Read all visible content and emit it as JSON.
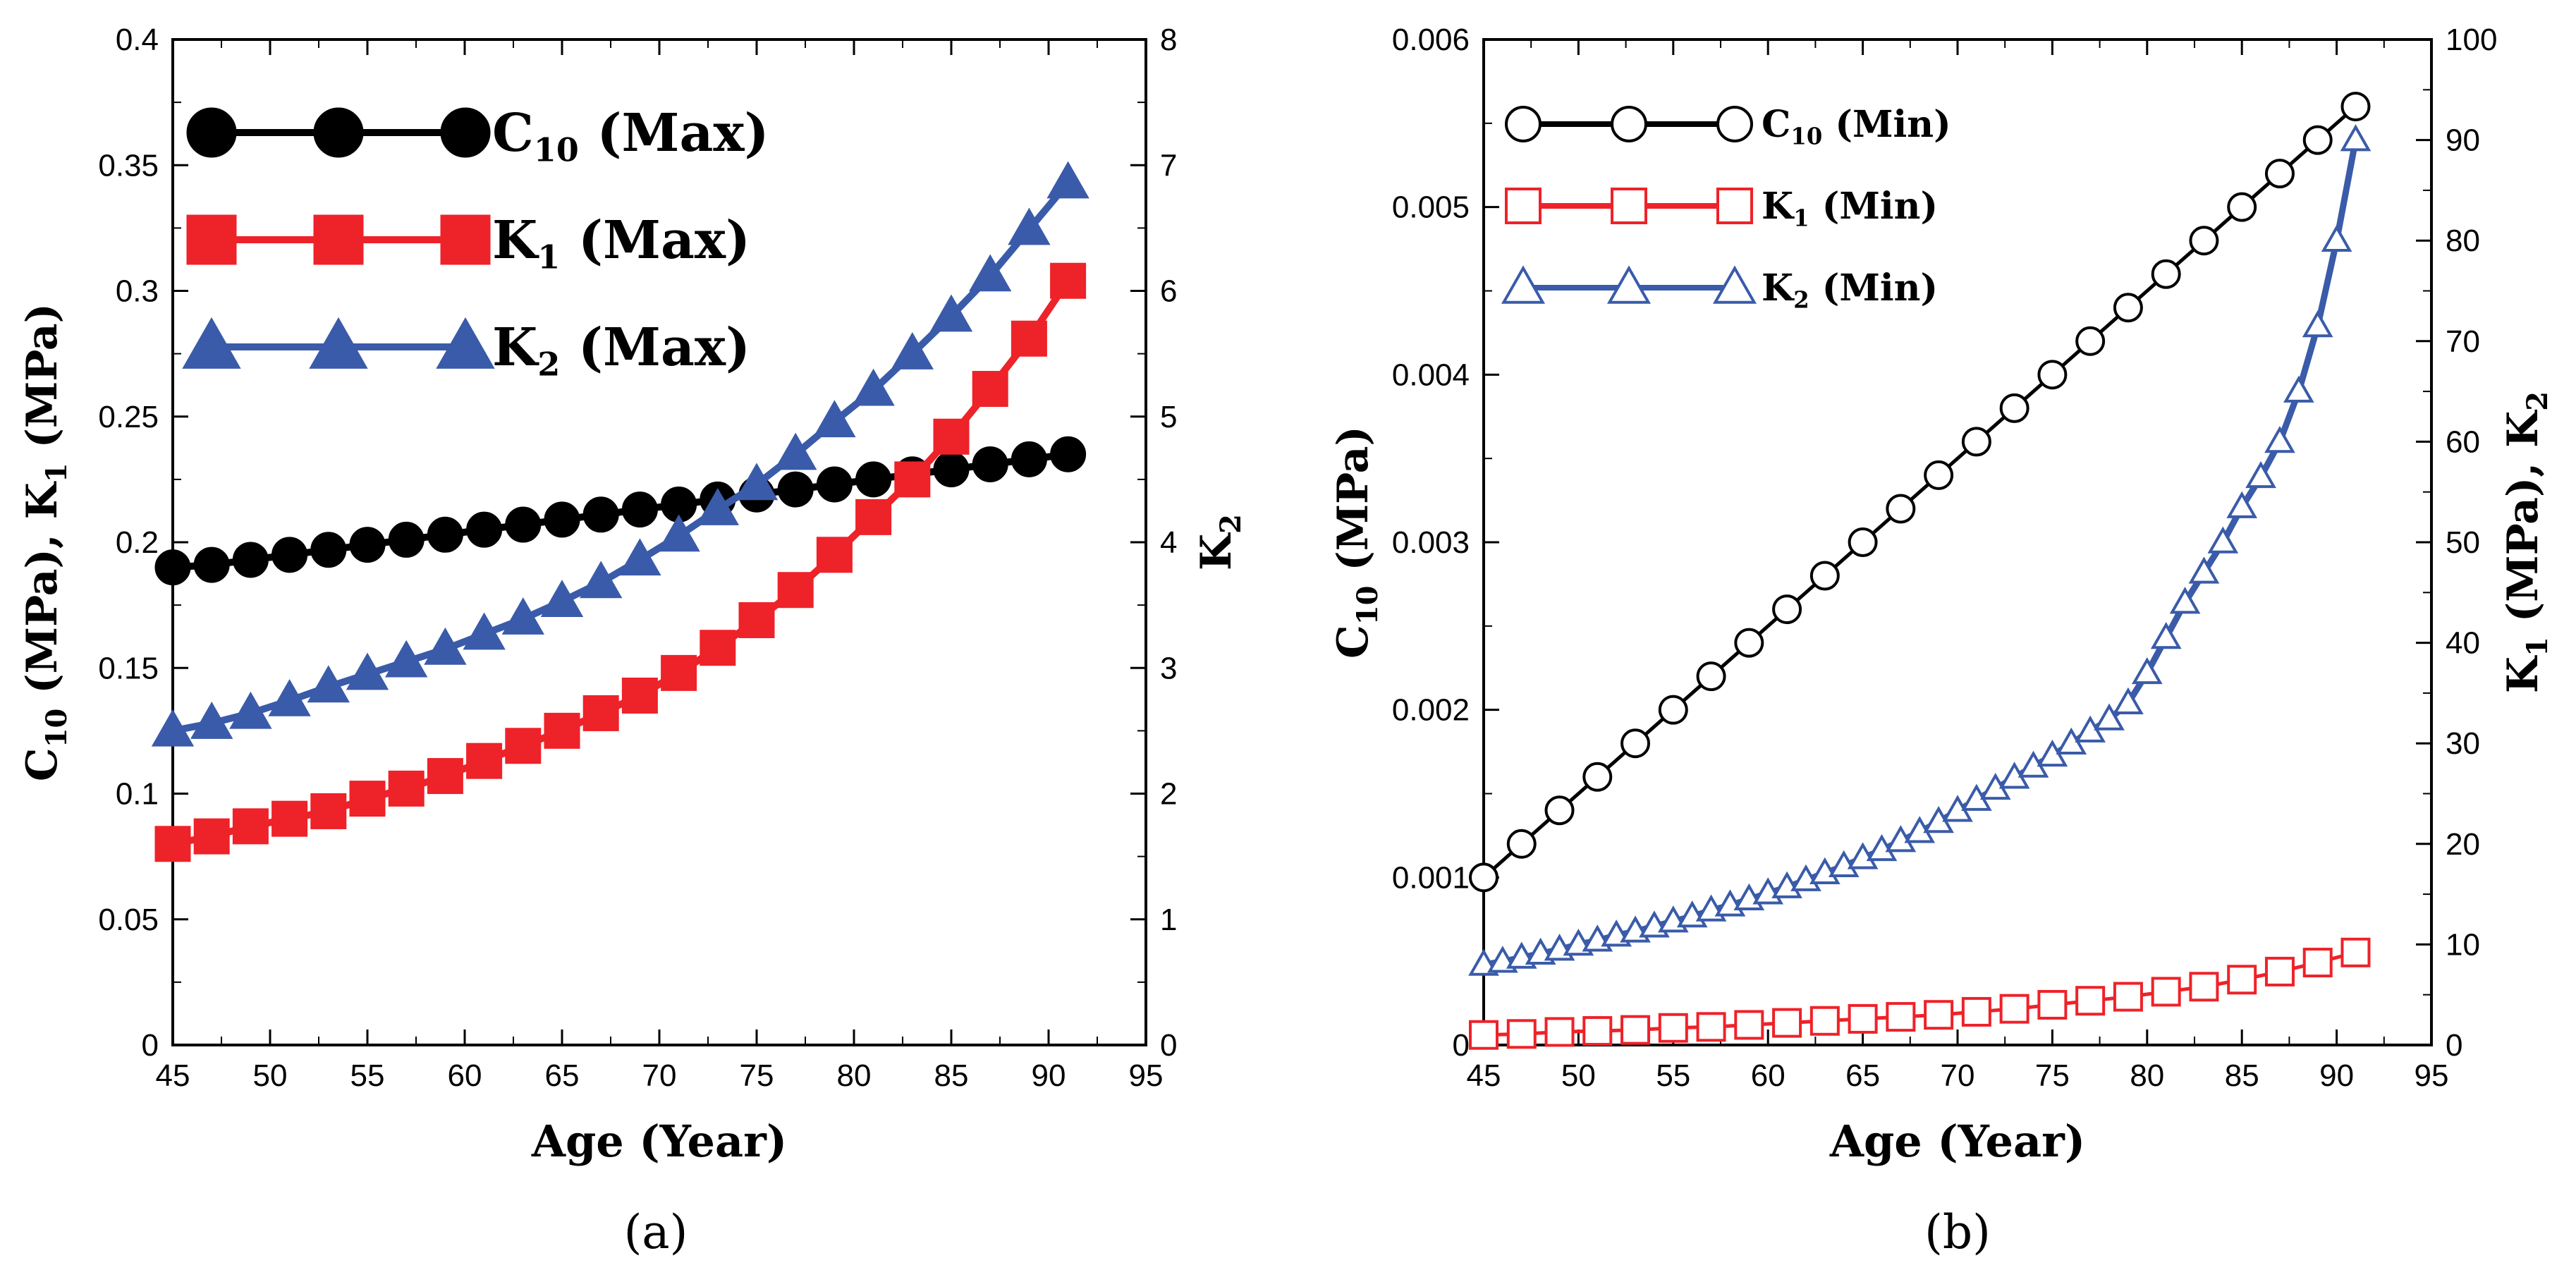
{
  "chart_data": [
    {
      "type": "line",
      "panel_label": "(a)",
      "xlabel": "Age (Year)",
      "ylabel_left": {
        "main": "C",
        "sub": "10",
        "rest": " (MPa), K",
        "sub2": "1",
        "rest2": " (MPa)"
      },
      "ylabel_right": {
        "main": "K",
        "sub": "2"
      },
      "x_ticks": [
        45,
        50,
        55,
        60,
        65,
        70,
        75,
        80,
        85,
        90,
        95
      ],
      "xlim": [
        45,
        95
      ],
      "ylim_left": [
        0,
        0.4
      ],
      "ylim_right": [
        0,
        8
      ],
      "y_ticks_left": [
        "0",
        "0.05",
        "0.1",
        "0.15",
        "0.2",
        "0.25",
        "0.3",
        "0.35",
        "0.4"
      ],
      "y_ticks_right": [
        "0",
        "1",
        "2",
        "3",
        "4",
        "5",
        "6",
        "7",
        "8"
      ],
      "legend": [
        {
          "main": "C",
          "sub": "10",
          "rest": " (Max)",
          "series": "C10"
        },
        {
          "main": "K",
          "sub": "1",
          "rest": " (Max)",
          "series": "K1"
        },
        {
          "main": "K",
          "sub": "2",
          "rest": " (Max)",
          "series": "K2"
        }
      ],
      "x": [
        45,
        47,
        49,
        51,
        53,
        55,
        57,
        59,
        61,
        63,
        65,
        67,
        69,
        71,
        73,
        75,
        77,
        79,
        81,
        83,
        85,
        87,
        89,
        91
      ],
      "series": [
        {
          "name": "C10 (Max)",
          "axis": "left",
          "marker": "circle",
          "filled": true,
          "color": "#000000",
          "values": [
            0.19,
            0.191,
            0.193,
            0.195,
            0.197,
            0.199,
            0.201,
            0.203,
            0.205,
            0.207,
            0.209,
            0.211,
            0.213,
            0.215,
            0.217,
            0.219,
            0.221,
            0.223,
            0.225,
            0.227,
            0.229,
            0.231,
            0.233,
            0.235
          ]
        },
        {
          "name": "K1 (Max)",
          "axis": "left",
          "marker": "square",
          "filled": true,
          "color": "#ee2229",
          "values": [
            0.08,
            0.083,
            0.087,
            0.09,
            0.093,
            0.098,
            0.102,
            0.107,
            0.113,
            0.119,
            0.125,
            0.132,
            0.139,
            0.148,
            0.158,
            0.169,
            0.181,
            0.195,
            0.21,
            0.225,
            0.242,
            0.261,
            0.281,
            0.304
          ]
        },
        {
          "name": "K2 (Max)",
          "axis": "right",
          "marker": "triangle",
          "filled": true,
          "color": "#3a5ba9",
          "values": [
            2.5,
            2.56,
            2.64,
            2.74,
            2.85,
            2.95,
            3.05,
            3.15,
            3.27,
            3.39,
            3.53,
            3.68,
            3.86,
            4.05,
            4.26,
            4.46,
            4.7,
            4.96,
            5.21,
            5.5,
            5.8,
            6.12,
            6.49,
            6.86
          ]
        }
      ]
    },
    {
      "type": "line",
      "panel_label": "(b)",
      "xlabel": "Age (Year)",
      "ylabel_left": {
        "main": "C",
        "sub": "10",
        "rest": " (MPa)"
      },
      "ylabel_right": {
        "main": "K",
        "sub": "1",
        "rest": " (MPa), K",
        "sub2": "2",
        "rest2": ""
      },
      "x_ticks": [
        45,
        50,
        55,
        60,
        65,
        70,
        75,
        80,
        85,
        90,
        95
      ],
      "xlim": [
        45,
        95
      ],
      "ylim_left": [
        0,
        0.006
      ],
      "ylim_right": [
        0,
        100
      ],
      "y_ticks_left": [
        "0",
        "0.001",
        "0.002",
        "0.003",
        "0.004",
        "0.005",
        "0.006"
      ],
      "y_ticks_right": [
        "0",
        "10",
        "20",
        "30",
        "40",
        "50",
        "60",
        "70",
        "80",
        "90",
        "100"
      ],
      "legend": [
        {
          "main": "C",
          "sub": "10",
          "rest": " (Min)",
          "series": "C10"
        },
        {
          "main": "K",
          "sub": "1",
          "rest": " (Min)",
          "series": "K1"
        },
        {
          "main": "K",
          "sub": "2",
          "rest": " (Min)",
          "series": "K2"
        }
      ],
      "series": [
        {
          "name": "C10 (Min)",
          "axis": "left",
          "marker": "circle",
          "filled": false,
          "color": "#000000",
          "x": [
            45,
            47,
            49,
            51,
            53,
            55,
            57,
            59,
            61,
            63,
            65,
            67,
            69,
            71,
            73,
            75,
            77,
            79,
            81,
            83,
            85,
            87,
            89,
            91
          ],
          "values": [
            0.001,
            0.0012,
            0.0014,
            0.0016,
            0.0018,
            0.002,
            0.0022,
            0.0024,
            0.0026,
            0.0028,
            0.003,
            0.0032,
            0.0034,
            0.0036,
            0.0038,
            0.004,
            0.0042,
            0.0044,
            0.0046,
            0.0048,
            0.005,
            0.0052,
            0.0054,
            0.0056
          ]
        },
        {
          "name": "K1 (Min)",
          "axis": "right",
          "marker": "square",
          "filled": false,
          "color": "#ee2229",
          "x": [
            45,
            47,
            49,
            51,
            53,
            55,
            57,
            59,
            61,
            63,
            65,
            67,
            69,
            71,
            73,
            75,
            77,
            79,
            81,
            83,
            85,
            87,
            89,
            91
          ],
          "values": [
            1.0,
            1.1,
            1.3,
            1.4,
            1.5,
            1.7,
            1.8,
            2.0,
            2.2,
            2.4,
            2.6,
            2.8,
            3.0,
            3.3,
            3.6,
            4.0,
            4.4,
            4.8,
            5.3,
            5.8,
            6.5,
            7.3,
            8.2,
            9.2
          ]
        },
        {
          "name": "K2 (Min)",
          "axis": "right",
          "marker": "triangle",
          "filled": false,
          "color": "#3a5ba9",
          "x": [
            45,
            46,
            47,
            48,
            49,
            50,
            51,
            52,
            53,
            54,
            55,
            56,
            57,
            58,
            59,
            60,
            61,
            62,
            63,
            64,
            65,
            66,
            67,
            68,
            69,
            70,
            71,
            72,
            73,
            74,
            75,
            76,
            77,
            78,
            79,
            80,
            81,
            82,
            83,
            84,
            85,
            86,
            87,
            88,
            89,
            90,
            91
          ],
          "values": [
            8.0,
            8.3,
            8.7,
            9.1,
            9.5,
            10.0,
            10.4,
            10.9,
            11.3,
            11.8,
            12.3,
            12.8,
            13.4,
            13.9,
            14.5,
            15.1,
            15.7,
            16.4,
            17.1,
            17.8,
            18.6,
            19.4,
            20.3,
            21.2,
            22.2,
            23.3,
            24.4,
            25.5,
            26.6,
            27.7,
            28.8,
            30.0,
            31.2,
            32.4,
            34.0,
            37.0,
            40.5,
            44.0,
            47.0,
            50.0,
            53.5,
            56.5,
            60.0,
            65.0,
            71.5,
            80.0,
            90.0
          ]
        }
      ]
    }
  ]
}
